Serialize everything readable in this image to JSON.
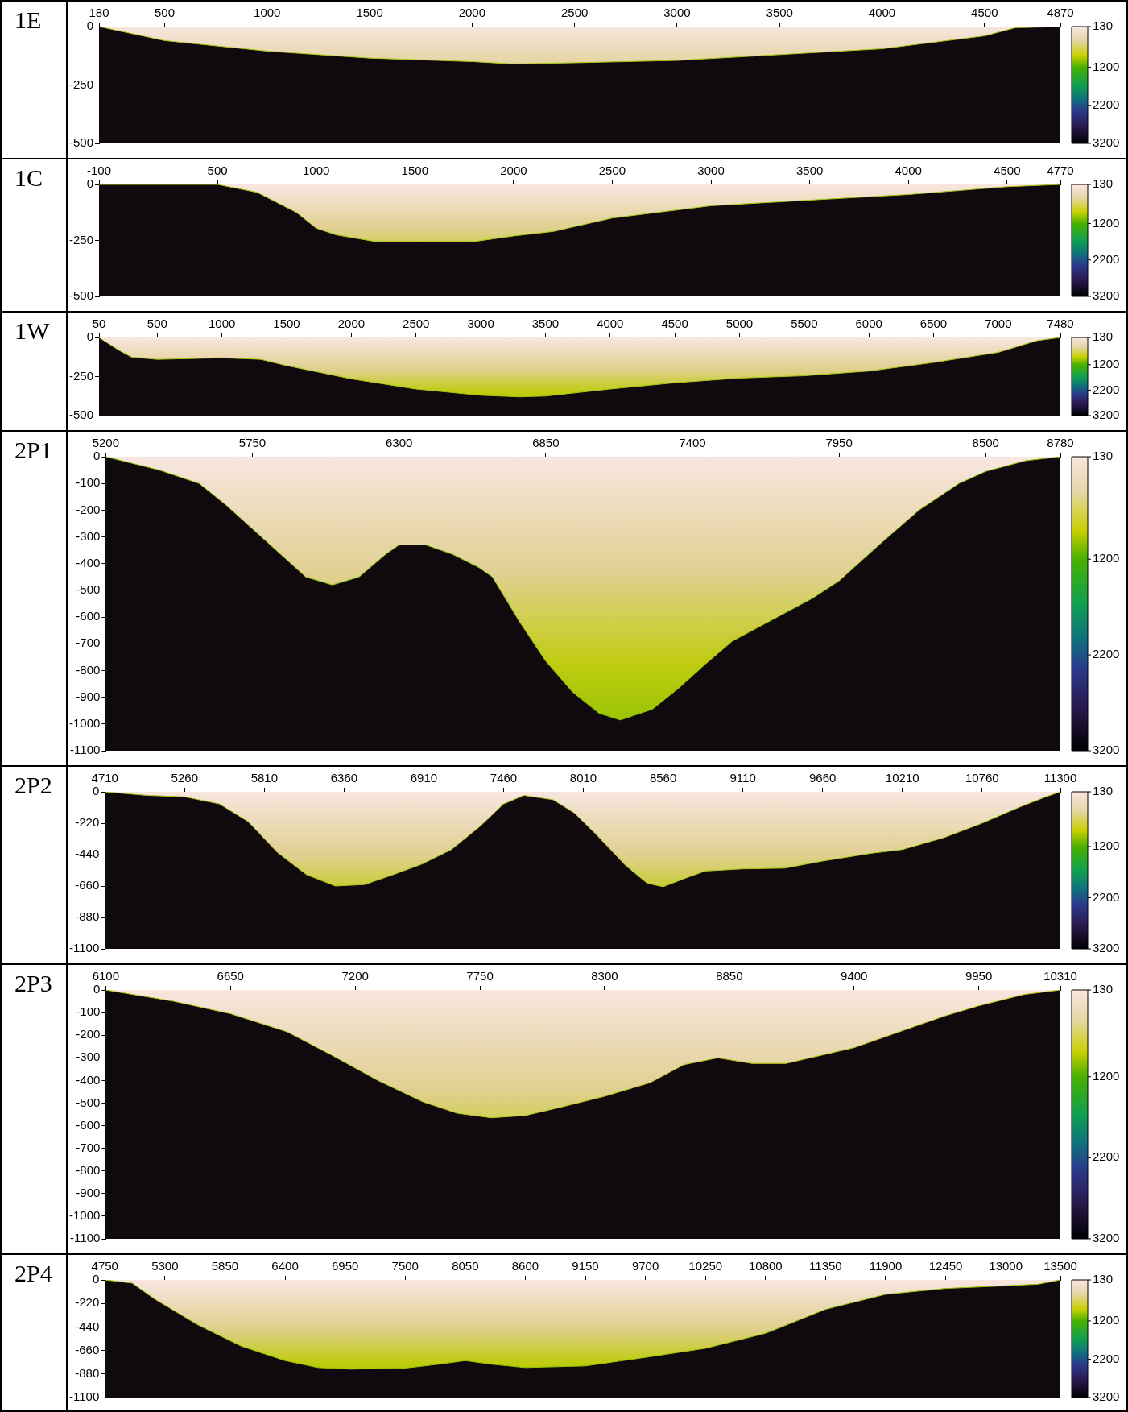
{
  "chart_data": [
    {
      "type": "area",
      "title": "1E",
      "x": [
        180,
        500,
        1000,
        1500,
        2000,
        2200,
        2500,
        3000,
        3500,
        4000,
        4500,
        4650,
        4870
      ],
      "series": [
        {
          "color": "#a8c810",
          "values": [
            0,
            -60,
            -105,
            -135,
            -150,
            -160,
            -155,
            -145,
            -120,
            -95,
            -40,
            -5,
            0
          ]
        }
      ],
      "xlim": [
        180,
        4870
      ],
      "xticks": [
        180,
        500,
        1000,
        1500,
        2000,
        2500,
        3000,
        3500,
        4000,
        4500,
        4870
      ],
      "ylim": [
        -500,
        0
      ],
      "yticks": [
        0,
        -250,
        -500
      ],
      "clim": [
        130,
        3200
      ],
      "cticks": [
        130,
        1200,
        2200,
        3200
      ]
    },
    {
      "type": "area",
      "title": "1C",
      "x": [
        -100,
        500,
        700,
        900,
        1000,
        1100,
        1300,
        1500,
        1800,
        2000,
        2200,
        2500,
        3000,
        3500,
        4000,
        4500,
        4770
      ],
      "series": [
        {
          "color": "#a8c810",
          "values": [
            0,
            0,
            -35,
            -125,
            -195,
            -225,
            -255,
            -255,
            -255,
            -230,
            -210,
            -150,
            -95,
            -70,
            -45,
            -10,
            0
          ]
        }
      ],
      "xlim": [
        -100,
        4770
      ],
      "xticks": [
        -100,
        500,
        1000,
        1500,
        2000,
        2500,
        3000,
        3500,
        4000,
        4500,
        4770
      ],
      "ylim": [
        -500,
        0
      ],
      "yticks": [
        0,
        -250,
        -500
      ],
      "clim": [
        130,
        3200
      ],
      "cticks": [
        130,
        1200,
        2200,
        3200
      ]
    },
    {
      "type": "area",
      "title": "1W",
      "x": [
        50,
        200,
        300,
        500,
        1000,
        1300,
        1500,
        2000,
        2500,
        3000,
        3300,
        3500,
        4000,
        4500,
        5000,
        5500,
        6000,
        6500,
        7000,
        7300,
        7480
      ],
      "series": [
        {
          "color": "#a8c810",
          "values": [
            0,
            -80,
            -125,
            -140,
            -130,
            -140,
            -180,
            -265,
            -330,
            -370,
            -380,
            -375,
            -330,
            -290,
            -260,
            -245,
            -215,
            -160,
            -95,
            -20,
            0
          ]
        }
      ],
      "xlim": [
        50,
        7480
      ],
      "xticks": [
        50,
        500,
        1000,
        1500,
        2000,
        2500,
        3000,
        3500,
        4000,
        4500,
        5000,
        5500,
        6000,
        6500,
        7000,
        7480
      ],
      "ylim": [
        -500,
        0
      ],
      "yticks": [
        0,
        -250,
        -500
      ],
      "clim": [
        130,
        3200
      ],
      "cticks": [
        130,
        1200,
        2200,
        3200
      ]
    },
    {
      "type": "area",
      "title": "2P1",
      "x": [
        5200,
        5400,
        5550,
        5650,
        5800,
        5950,
        6050,
        6150,
        6250,
        6300,
        6400,
        6500,
        6600,
        6650,
        6750,
        6850,
        6950,
        7050,
        7130,
        7250,
        7350,
        7450,
        7550,
        7700,
        7850,
        7950,
        8100,
        8250,
        8400,
        8500,
        8650,
        8780
      ],
      "series": [
        {
          "color": "#88c000",
          "values": [
            0,
            -50,
            -100,
            -180,
            -315,
            -450,
            -480,
            -450,
            -365,
            -330,
            -330,
            -365,
            -415,
            -450,
            -615,
            -765,
            -880,
            -960,
            -985,
            -945,
            -865,
            -775,
            -690,
            -610,
            -530,
            -465,
            -330,
            -200,
            -100,
            -55,
            -15,
            0
          ]
        }
      ],
      "xlim": [
        5200,
        8780
      ],
      "xticks": [
        5200,
        5750,
        6300,
        6850,
        7400,
        7950,
        8500,
        8780
      ],
      "ylim": [
        -1100,
        0
      ],
      "yticks": [
        0,
        -100,
        -200,
        -300,
        -400,
        -500,
        -600,
        -700,
        -800,
        -900,
        -1000,
        -1100
      ],
      "clim": [
        130,
        3200
      ],
      "cticks": [
        130,
        1200,
        2200,
        3200
      ]
    },
    {
      "type": "area",
      "title": "2P2",
      "x": [
        4710,
        5000,
        5260,
        5500,
        5700,
        5900,
        6100,
        6300,
        6500,
        6700,
        6900,
        7100,
        7300,
        7460,
        7600,
        7800,
        7950,
        8100,
        8300,
        8450,
        8560,
        8700,
        8850,
        9110,
        9400,
        9660,
        10000,
        10210,
        10500,
        10760,
        11000,
        11200,
        11300
      ],
      "series": [
        {
          "color": "#a8c810",
          "values": [
            0,
            -25,
            -35,
            -85,
            -210,
            -425,
            -580,
            -660,
            -650,
            -580,
            -505,
            -405,
            -240,
            -85,
            -25,
            -55,
            -150,
            -300,
            -515,
            -640,
            -665,
            -610,
            -555,
            -540,
            -535,
            -485,
            -430,
            -405,
            -320,
            -220,
            -115,
            -35,
            0
          ]
        }
      ],
      "xlim": [
        4710,
        11300
      ],
      "xticks": [
        4710,
        5260,
        5810,
        6360,
        6910,
        7460,
        8010,
        8560,
        9110,
        9660,
        10210,
        10760,
        11300
      ],
      "ylim": [
        -1100,
        0
      ],
      "yticks": [
        0,
        -220,
        -440,
        -660,
        -880,
        -1100
      ],
      "clim": [
        130,
        3200
      ],
      "cticks": [
        130,
        1200,
        2200,
        3200
      ]
    },
    {
      "type": "area",
      "title": "2P3",
      "x": [
        6100,
        6400,
        6650,
        6900,
        7100,
        7300,
        7500,
        7650,
        7800,
        7950,
        8100,
        8300,
        8500,
        8650,
        8800,
        8950,
        9100,
        9250,
        9400,
        9600,
        9800,
        9950,
        10150,
        10310
      ],
      "series": [
        {
          "color": "#b8c810",
          "values": [
            0,
            -50,
            -105,
            -185,
            -290,
            -400,
            -495,
            -545,
            -565,
            -555,
            -520,
            -470,
            -410,
            -330,
            -300,
            -325,
            -325,
            -290,
            -255,
            -185,
            -115,
            -70,
            -20,
            0
          ]
        }
      ],
      "xlim": [
        6100,
        10310
      ],
      "xticks": [
        6100,
        6650,
        7200,
        7750,
        8300,
        8850,
        9400,
        9950,
        10310
      ],
      "ylim": [
        -1100,
        0
      ],
      "yticks": [
        0,
        -100,
        -200,
        -300,
        -400,
        -500,
        -600,
        -700,
        -800,
        -900,
        -1000,
        -1100
      ],
      "clim": [
        130,
        3200
      ],
      "cticks": [
        130,
        1200,
        2200,
        3200
      ]
    },
    {
      "type": "area",
      "title": "2P4",
      "x": [
        4750,
        5000,
        5200,
        5600,
        6000,
        6400,
        6700,
        7000,
        7500,
        7800,
        8050,
        8300,
        8600,
        9150,
        9700,
        10250,
        10800,
        11350,
        11900,
        12450,
        13000,
        13300,
        13500
      ],
      "series": [
        {
          "color": "#98c400",
          "values": [
            0,
            -30,
            -175,
            -420,
            -620,
            -755,
            -820,
            -835,
            -825,
            -790,
            -755,
            -790,
            -820,
            -805,
            -725,
            -640,
            -500,
            -275,
            -135,
            -80,
            -55,
            -40,
            0
          ]
        }
      ],
      "xlim": [
        4750,
        13500
      ],
      "xticks": [
        4750,
        5300,
        5850,
        6400,
        6950,
        7500,
        8050,
        8600,
        9150,
        9700,
        10250,
        10800,
        11350,
        11900,
        12450,
        13000,
        13500
      ],
      "ylim": [
        -1100,
        0
      ],
      "yticks": [
        0,
        -220,
        -440,
        -660,
        -880,
        -1100
      ],
      "clim": [
        130,
        3200
      ],
      "cticks": [
        130,
        1200,
        2200,
        3200
      ]
    }
  ]
}
